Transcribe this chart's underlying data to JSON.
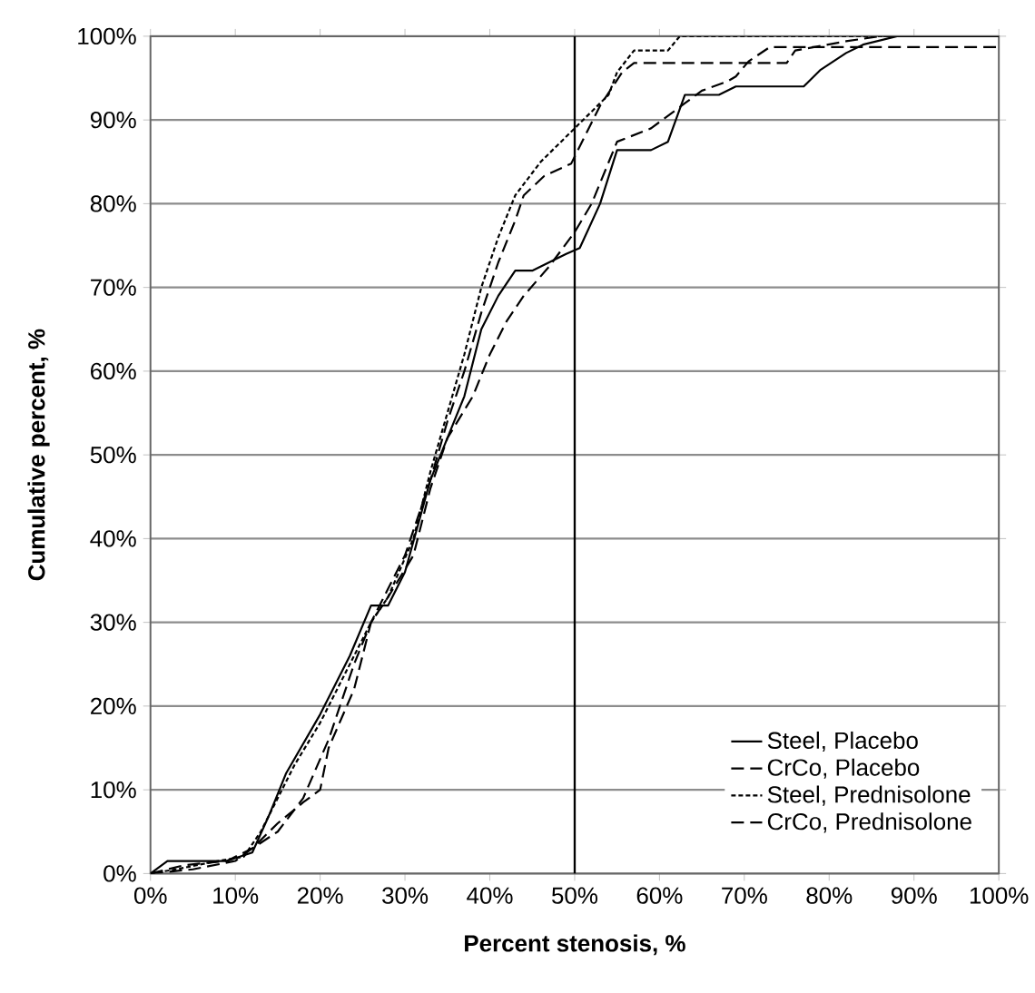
{
  "chart_data": {
    "type": "line",
    "xlabel": "Percent stenosis, %",
    "ylabel": "Cumulative percent, %",
    "xlim": [
      0,
      100
    ],
    "ylim": [
      0,
      100
    ],
    "xticks": [
      {
        "value": 0,
        "label": "0%"
      },
      {
        "value": 10,
        "label": "10%"
      },
      {
        "value": 20,
        "label": "20%"
      },
      {
        "value": 30,
        "label": "30%"
      },
      {
        "value": 40,
        "label": "40%"
      },
      {
        "value": 50,
        "label": "50%"
      },
      {
        "value": 60,
        "label": "60%"
      },
      {
        "value": 70,
        "label": "70%"
      },
      {
        "value": 80,
        "label": "80%"
      },
      {
        "value": 90,
        "label": "90%"
      },
      {
        "value": 100,
        "label": "100%"
      }
    ],
    "yticks": [
      {
        "value": 0,
        "label": "0%"
      },
      {
        "value": 10,
        "label": "10%"
      },
      {
        "value": 20,
        "label": "20%"
      },
      {
        "value": 30,
        "label": "30%"
      },
      {
        "value": 40,
        "label": "40%"
      },
      {
        "value": 50,
        "label": "50%"
      },
      {
        "value": 60,
        "label": "60%"
      },
      {
        "value": 70,
        "label": "70%"
      },
      {
        "value": 80,
        "label": "80%"
      },
      {
        "value": 90,
        "label": "90%"
      },
      {
        "value": 100,
        "label": "100%"
      }
    ],
    "grid": "y",
    "legend": "bottom right",
    "marker": "none",
    "ref_lines": [
      {
        "axis": "x",
        "value": 50,
        "color": "#000000",
        "line_style": "solid"
      }
    ],
    "series": [
      {
        "name": "Steel, Placebo",
        "color": "#000000",
        "line_style": "solid",
        "x": [
          0,
          2,
          9,
          12,
          14,
          16,
          20,
          23.5,
          26,
          28,
          30,
          33,
          35,
          37,
          39,
          41,
          43,
          45,
          47,
          49,
          50.6,
          53,
          55,
          59,
          61,
          63,
          67,
          69,
          77,
          79,
          82,
          84,
          88,
          100
        ],
        "values": [
          0,
          1.5,
          1.5,
          2.5,
          7,
          12,
          19,
          26,
          32,
          32,
          36,
          47,
          52,
          57,
          65,
          69,
          72,
          72,
          73,
          74,
          74.7,
          80,
          86.4,
          86.4,
          87.4,
          93,
          93,
          94,
          94,
          96,
          98,
          99,
          100,
          100
        ]
      },
      {
        "name": "CrCo, Placebo",
        "color": "#000000",
        "line_style": "dashed",
        "x": [
          0,
          5,
          10,
          12,
          15,
          18,
          20,
          21,
          24,
          26,
          28,
          31,
          33,
          35,
          38,
          40,
          42,
          44,
          47,
          50,
          52,
          55,
          59,
          63,
          65,
          68,
          69,
          70.5,
          73,
          100
        ],
        "values": [
          0,
          0.5,
          1.5,
          3,
          6,
          8.5,
          10,
          15,
          22,
          30,
          33,
          38,
          46,
          52,
          57,
          62,
          66,
          69,
          72.5,
          76.6,
          80,
          87.4,
          89,
          92,
          93.5,
          94.6,
          95.2,
          97,
          98.7,
          98.7
        ]
      },
      {
        "name": "Steel, Prednisolone",
        "color": "#000000",
        "line_style": "dotted",
        "x": [
          0,
          3,
          8,
          11,
          13,
          15,
          17,
          20,
          23,
          26,
          28,
          31,
          33,
          35,
          37,
          39,
          41,
          43,
          46,
          49,
          52,
          54,
          55,
          57,
          61,
          62.4,
          100
        ],
        "values": [
          0,
          0.5,
          1.5,
          2,
          5,
          9,
          13,
          18,
          24,
          30,
          33,
          40,
          48,
          55,
          62,
          70,
          76,
          81,
          85,
          88,
          91,
          93,
          95.7,
          98.3,
          98.3,
          100,
          100
        ]
      },
      {
        "name": "CrCo, Prednisolone",
        "color": "#000000",
        "line_style": "dashed",
        "x": [
          0,
          4,
          9,
          12,
          15,
          18,
          21,
          24,
          26,
          28,
          30,
          33,
          35,
          37,
          39,
          41,
          43,
          44,
          46.4,
          49.6,
          53,
          55.6,
          57,
          75,
          76,
          82,
          86,
          100
        ],
        "values": [
          0,
          1,
          1.5,
          3,
          5,
          9,
          16,
          25,
          30,
          34,
          38,
          47,
          54,
          60,
          67,
          73,
          78,
          81,
          83.3,
          84.8,
          91.7,
          95.7,
          96.8,
          96.8,
          98.3,
          99.4,
          100,
          100
        ]
      }
    ]
  }
}
